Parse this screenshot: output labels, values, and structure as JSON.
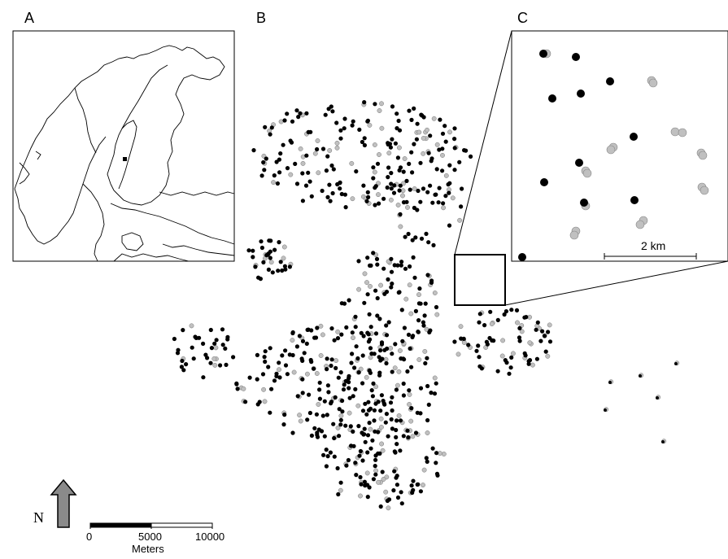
{
  "panels": {
    "a": "A",
    "b": "B",
    "c": "C"
  },
  "inset_scale": {
    "label": "2 km"
  },
  "north_arrow": {
    "label": "N"
  },
  "scale_bar": {
    "ticks": [
      "0",
      "5000",
      "10000"
    ],
    "unit": "Meters"
  },
  "colors": {
    "ink": "#000000",
    "secondary_point": "#c0c0c0",
    "arrow_fill": "#8a8a8a"
  },
  "points": {
    "black_count": 620,
    "gray_count": 220,
    "inset_black": [
      [
        668,
        66
      ],
      [
        708,
        70
      ],
      [
        750,
        100
      ],
      [
        679,
        121
      ],
      [
        714,
        115
      ],
      [
        779,
        168
      ],
      [
        712,
        200
      ],
      [
        669,
        224
      ],
      [
        718,
        249
      ],
      [
        780,
        246
      ],
      [
        642,
        316
      ]
    ],
    "inset_gray": [
      [
        672,
        66
      ],
      [
        801,
        99
      ],
      [
        803,
        102
      ],
      [
        830,
        162
      ],
      [
        839,
        163
      ],
      [
        754,
        181
      ],
      [
        751,
        184
      ],
      [
        720,
        210
      ],
      [
        722,
        213
      ],
      [
        862,
        188
      ],
      [
        864,
        191
      ],
      [
        863,
        230
      ],
      [
        866,
        234
      ],
      [
        720,
        253
      ],
      [
        791,
        271
      ],
      [
        787,
        276
      ],
      [
        708,
        284
      ],
      [
        706,
        289
      ]
    ]
  }
}
